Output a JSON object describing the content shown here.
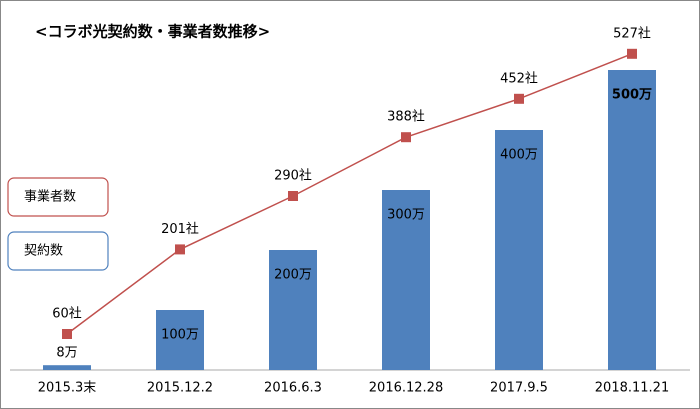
{
  "chart_data": {
    "type": "bar-line",
    "title": "<コラボ光契約数・事業者数推移>",
    "categories": [
      "2015.3末",
      "2015.12.2",
      "2016.6.3",
      "2016.12.28",
      "2017.9.5",
      "2018.11.21"
    ],
    "series": [
      {
        "name": "契約数",
        "type": "bar",
        "color": "#4f81bd",
        "values": [
          8,
          100,
          200,
          300,
          400,
          500
        ],
        "value_labels": [
          "8万",
          "100万",
          "200万",
          "300万",
          "400万",
          "500万"
        ]
      },
      {
        "name": "事業者数",
        "type": "line",
        "color": "#c0504d",
        "values": [
          60,
          201,
          290,
          388,
          452,
          527
        ],
        "value_labels": [
          "60社",
          "201社",
          "290社",
          "388社",
          "452社",
          "527社"
        ]
      }
    ],
    "ylim": [
      0,
      520
    ]
  }
}
